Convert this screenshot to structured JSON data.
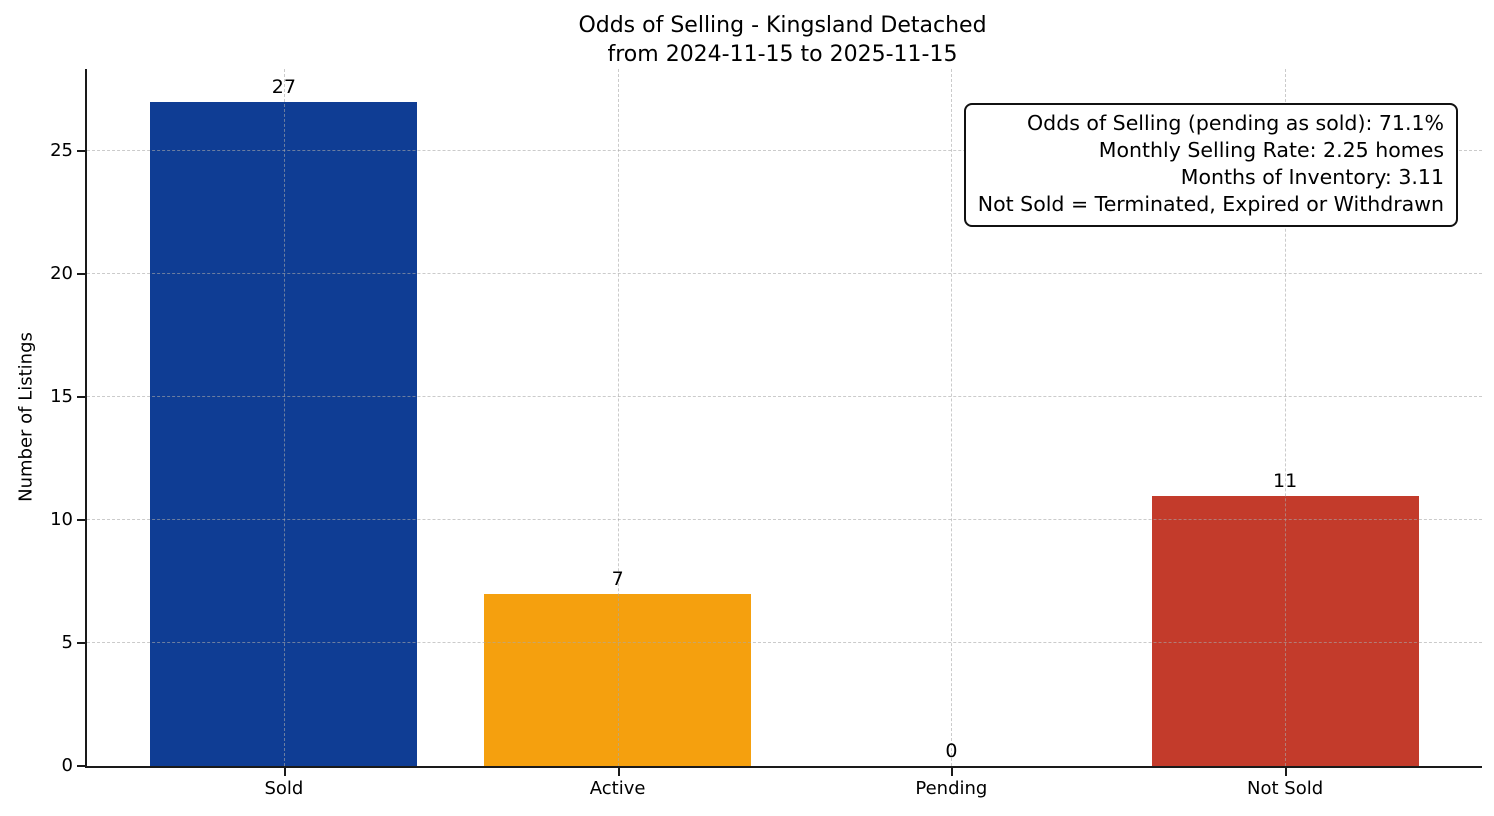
{
  "figure": {
    "background": "#ffffff"
  },
  "chart_data": {
    "type": "bar",
    "title": "Odds of Selling - Kingsland Detached",
    "subtitle": "from 2024-11-15 to 2025-11-15",
    "categories": [
      "Sold",
      "Active",
      "Pending",
      "Not Sold"
    ],
    "values": [
      27,
      7,
      0,
      11
    ],
    "bar_colors": [
      "#0f3d94",
      "#f5a00e",
      null,
      "#c33b2b"
    ],
    "xlabel": "",
    "ylabel": "Number of Listings",
    "yticks": [
      0,
      5,
      10,
      15,
      20,
      25
    ],
    "ylim": [
      0,
      28.35
    ],
    "xlim": [
      -0.59,
      3.59
    ],
    "bar_width": 0.8,
    "grid": "dashed gray, horizontal at yticks and vertical at bar centers, drawn over bars",
    "legend": "none",
    "annotation": {
      "position": "top-right",
      "lines": [
        "Odds of Selling (pending as sold): 71.1%",
        "Monthly Selling Rate: 2.25 homes",
        "Months of Inventory: 3.11",
        "Not Sold = Terminated, Expired or Withdrawn"
      ]
    }
  }
}
